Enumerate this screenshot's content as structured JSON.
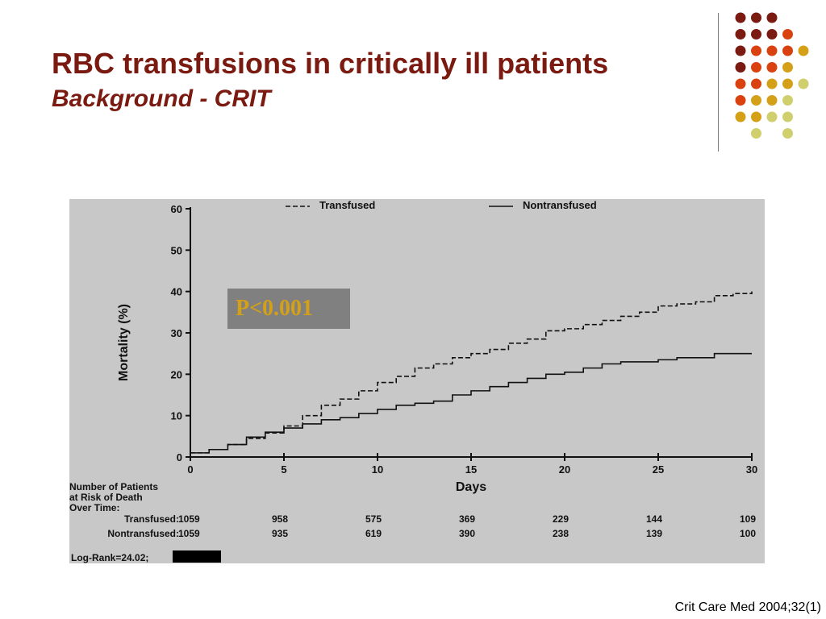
{
  "slide": {
    "title": "RBC transfusions in critically ill patients",
    "subtitle": "Background - CRIT",
    "citation": "Crit Care Med 2004;32(1)",
    "dot_colors": [
      "#7a1a10",
      "#d9420f",
      "#d4a017",
      "#cfcf6e"
    ]
  },
  "annotation": {
    "p_value": "P<0.001",
    "log_rank": "Log-Rank=24.02;"
  },
  "risk_table": {
    "heading": [
      "Number of Patients",
      "at Risk of Death",
      "Over Time:"
    ],
    "rows": [
      {
        "label": "Transfused:",
        "values": [
          "1059",
          "958",
          "575",
          "369",
          "229",
          "144",
          "109"
        ]
      },
      {
        "label": "Nontransfused:",
        "values": [
          "1059",
          "935",
          "619",
          "390",
          "238",
          "139",
          "100"
        ]
      }
    ]
  },
  "chart_data": {
    "type": "line",
    "step": true,
    "xlabel": "Days",
    "ylabel": "Mortality (%)",
    "xlim": [
      0,
      30
    ],
    "ylim": [
      0,
      60
    ],
    "xticks": [
      0,
      5,
      10,
      15,
      20,
      25,
      30
    ],
    "yticks": [
      0,
      10,
      20,
      30,
      40,
      50,
      60
    ],
    "legend": "top",
    "grid": false,
    "series": [
      {
        "name": "Transfused",
        "style": "dashed",
        "x": [
          0,
          1,
          2,
          3,
          4,
          5,
          6,
          7,
          8,
          9,
          10,
          11,
          12,
          13,
          14,
          15,
          16,
          17,
          18,
          19,
          20,
          21,
          22,
          23,
          24,
          25,
          26,
          27,
          28,
          29,
          30
        ],
        "y": [
          1,
          1.8,
          3,
          4.5,
          5.8,
          7.5,
          10,
          12.5,
          14,
          16,
          18,
          19.5,
          21.5,
          22.5,
          24,
          25,
          26,
          27.5,
          28.5,
          30.5,
          31,
          32,
          33,
          34,
          35,
          36.5,
          37,
          37.5,
          39,
          39.5,
          40
        ]
      },
      {
        "name": "Nontransfused",
        "style": "solid",
        "x": [
          0,
          1,
          2,
          3,
          4,
          5,
          6,
          7,
          8,
          9,
          10,
          11,
          12,
          13,
          14,
          15,
          16,
          17,
          18,
          19,
          20,
          21,
          22,
          23,
          24,
          25,
          26,
          27,
          28,
          29,
          30
        ],
        "y": [
          1,
          1.8,
          3,
          4.8,
          6,
          7,
          8,
          9,
          9.5,
          10.5,
          11.5,
          12.5,
          13,
          13.5,
          15,
          16,
          17,
          18,
          19,
          20,
          20.5,
          21.5,
          22.5,
          23,
          23,
          23.5,
          24,
          24,
          25,
          25,
          25
        ]
      }
    ]
  }
}
